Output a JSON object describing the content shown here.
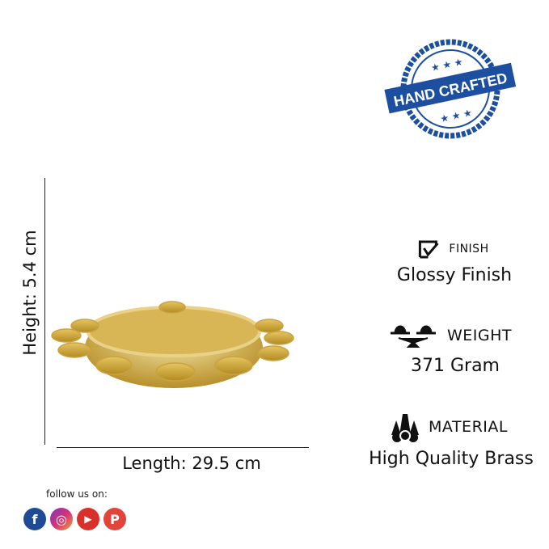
{
  "stamp": {
    "text": "HAND CRAFTED",
    "color": "#1d4fa0"
  },
  "dimensions": {
    "height": "Height: 5.4 cm",
    "length": "Length: 29.5 cm"
  },
  "specs": [
    {
      "icon": "checkbox-icon",
      "label": "FINISH",
      "value": "Glossy Finish"
    },
    {
      "icon": "scale-icon",
      "label": "WEIGHT",
      "value": "371 Gram"
    },
    {
      "icon": "material-icon",
      "label": "MATERIAL",
      "value": "High Quality Brass"
    }
  ],
  "social": {
    "label": "follow us on:",
    "icons": [
      {
        "name": "facebook-icon",
        "glyph": "f",
        "color": "#1e4a96"
      },
      {
        "name": "instagram-icon",
        "glyph": "◎",
        "color": "#b0339a"
      },
      {
        "name": "youtube-icon",
        "glyph": "▶",
        "color": "#d9302a"
      },
      {
        "name": "pinterest-icon",
        "glyph": "P",
        "color": "#e0443a"
      }
    ]
  }
}
